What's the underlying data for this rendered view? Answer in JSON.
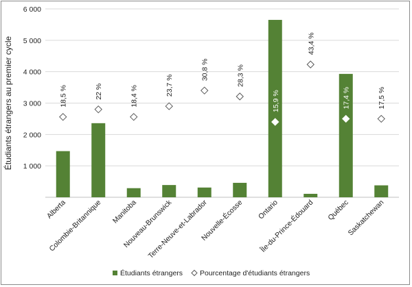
{
  "chart_data": {
    "type": "bar",
    "ylabel": "Étudiants étrangers au premier cycle",
    "ylim": [
      0,
      6000
    ],
    "yticks": [
      0,
      1000,
      2000,
      3000,
      4000,
      5000,
      6000
    ],
    "ytick_labels": [
      "",
      "1 000",
      "2 000",
      "3 000",
      "4 000",
      "5 000",
      "6 000"
    ],
    "categories": [
      "Alberta",
      "Colombie-Britannique",
      "Manitoba",
      "Nouveau-Brunswick",
      "Terre-Neuve-et-Labrador",
      "Nouvelle-Écosse",
      "Ontario",
      "Île-du-Prince-Édouard",
      "Québec",
      "Saskatchewan"
    ],
    "grid": "horizontal",
    "legend_position": "bottom",
    "series": [
      {
        "name": "Étudiants étrangers",
        "type": "bar",
        "color": "#548235",
        "values": [
          1470,
          2360,
          290,
          390,
          310,
          460,
          5650,
          110,
          3930,
          380
        ]
      },
      {
        "name": "Pourcentage d'étudiants étrangers",
        "type": "scatter",
        "marker": "diamond",
        "color": "#ffffff",
        "values": [
          2560,
          2800,
          2560,
          2900,
          3400,
          3210,
          2400,
          4230,
          2500,
          2500
        ],
        "labels": [
          "18,5 %",
          "22 %",
          "18,4 %",
          "23,7 %",
          "30,8 %",
          "28,3 %",
          "15,9 %",
          "43,4 %",
          "17,4 %",
          "17,5 %"
        ]
      }
    ]
  }
}
